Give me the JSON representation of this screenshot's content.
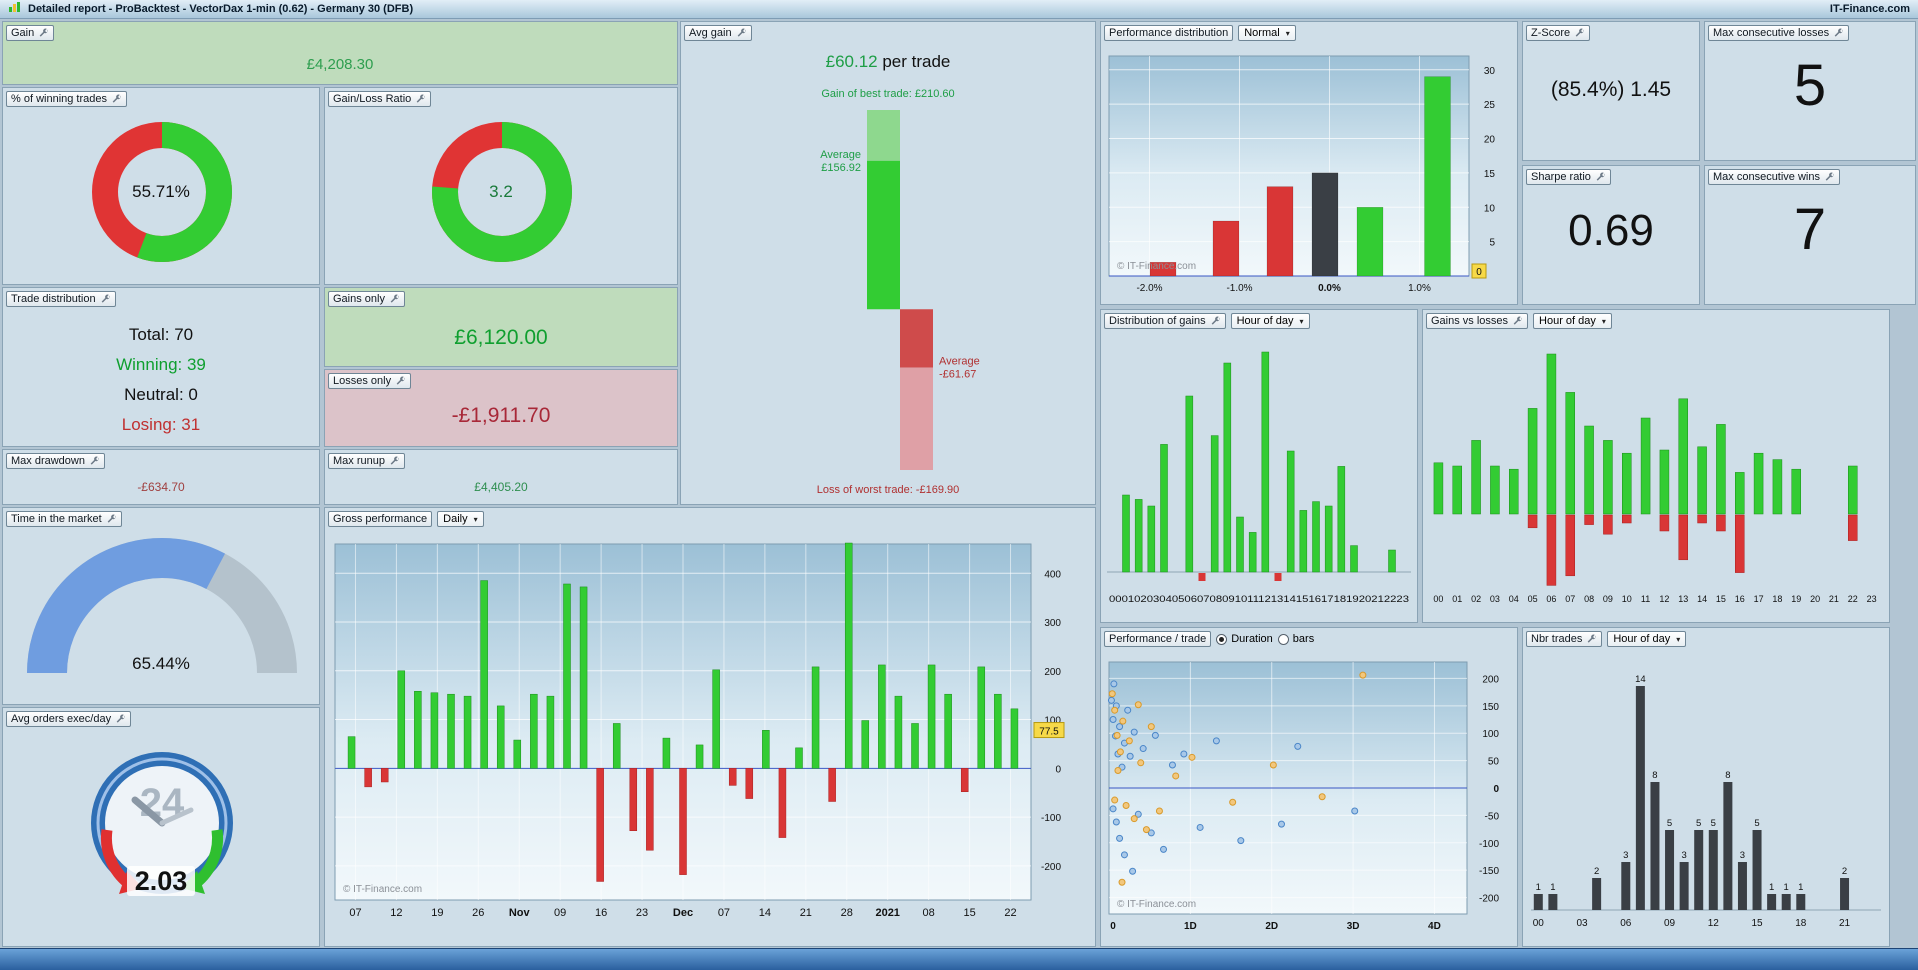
{
  "titlebar": {
    "title": "Detailed report - ProBacktest - VectorDax 1-min (0.62) - Germany 30 (DFB)",
    "brand": "IT-Finance.com"
  },
  "colors": {
    "bar_green": "#33cc33",
    "bar_red": "#d93636",
    "bar_dark": "#3a3f45",
    "gauge_blue": "#6f9de0",
    "gauge_rest": "#b4c2cc",
    "marker_yellow": "#f7d948",
    "zero_line_blue": "#3a57c4"
  },
  "gain": {
    "label": "Gain",
    "value": "£4,208.30"
  },
  "pct_winning": {
    "label": "% of winning trades",
    "display": "55.71%",
    "percent": 55.71
  },
  "gain_loss_ratio": {
    "label": "Gain/Loss Ratio",
    "display": "3.2",
    "green_percent": 76.2
  },
  "trade_distribution": {
    "label": "Trade distribution",
    "total": "Total: 70",
    "winning": "Winning: 39",
    "neutral": "Neutral: 0",
    "losing": "Losing: 31"
  },
  "gains_only": {
    "label": "Gains only",
    "value": "£6,120.00"
  },
  "losses_only": {
    "label": "Losses only",
    "value": "-£1,911.70"
  },
  "max_drawdown": {
    "label": "Max drawdown",
    "value": "-£634.70"
  },
  "max_runup": {
    "label": "Max runup",
    "value": "£4,405.20"
  },
  "time_in_market": {
    "label": "Time in the market",
    "display": "65.44%",
    "percent": 65.44
  },
  "avg_orders": {
    "label": "Avg orders exec/day",
    "value": "2.03",
    "clock_label": "24"
  },
  "avg_gain": {
    "label": "Avg gain",
    "value": "£60.12",
    "suffix": " per trade",
    "best_label": "Gain of best trade: £210.60",
    "worst_label": "Loss of worst trade: -£169.90",
    "avg_gain_line1": "Average",
    "avg_gain_line2": "£156.92",
    "avg_loss_line1": "Average",
    "avg_loss_line2": "-£61.67",
    "values": {
      "best": 210.6,
      "avg_gain": 156.92,
      "avg_loss": -61.67,
      "worst": -169.9
    }
  },
  "z_score": {
    "label": "Z-Score",
    "value": "(85.4%) 1.45"
  },
  "sharpe_ratio": {
    "label": "Sharpe ratio",
    "value": "0.69"
  },
  "max_consecutive_losses": {
    "label": "Max consecutive losses",
    "value": "5"
  },
  "max_consecutive_wins": {
    "label": "Max consecutive wins",
    "value": "7"
  },
  "chart_data": [
    {
      "id": "gross_performance",
      "type": "bar",
      "label": "Gross performance",
      "period_selector": "Daily",
      "watermark": "© IT-Finance.com",
      "last_value": "77.5",
      "ylim": [
        -270,
        460
      ],
      "y_ticks": [
        400,
        300,
        200,
        100,
        0,
        -100,
        -200
      ],
      "x_labels": [
        "07",
        "12",
        "19",
        "26",
        "Nov",
        "09",
        "16",
        "23",
        "Dec",
        "07",
        "14",
        "21",
        "28",
        "2021",
        "08",
        "15",
        "22"
      ],
      "bold_x_labels": [
        "Nov",
        "Dec",
        "2021"
      ],
      "values": [
        65,
        -38,
        -28,
        200,
        158,
        155,
        152,
        148,
        385,
        128,
        58,
        152,
        148,
        378,
        372,
        -232,
        92,
        -128,
        -168,
        62,
        -218,
        48,
        202,
        -35,
        -62,
        78,
        -142,
        42,
        208,
        -68,
        462,
        98,
        212,
        148,
        92,
        212,
        152,
        -48,
        208,
        152,
        122
      ]
    },
    {
      "id": "performance_distribution",
      "type": "histogram",
      "label": "Performance distribution",
      "mode_selector": "Normal",
      "watermark": "© IT-Finance.com",
      "marker": "0",
      "ylim": [
        0,
        32
      ],
      "xlim": [
        -2.45,
        1.55
      ],
      "y_ticks": [
        30,
        25,
        20,
        15,
        10,
        5
      ],
      "x_ticks": [
        {
          "v": -2.0,
          "label": "-2.0%",
          "bold": false
        },
        {
          "v": -1.0,
          "label": "-1.0%",
          "bold": false
        },
        {
          "v": 0.0,
          "label": "0.0%",
          "bold": true
        },
        {
          "v": 1.0,
          "label": "1.0%",
          "bold": false
        }
      ],
      "bars": [
        {
          "x": -1.85,
          "value": 2,
          "color": "red"
        },
        {
          "x": -1.15,
          "value": 8,
          "color": "red"
        },
        {
          "x": -0.55,
          "value": 13,
          "color": "red"
        },
        {
          "x": -0.05,
          "value": 15,
          "color": "dark"
        },
        {
          "x": 0.45,
          "value": 10,
          "color": "green"
        },
        {
          "x": 1.2,
          "value": 29,
          "color": "green"
        }
      ]
    },
    {
      "id": "distribution_of_gains",
      "type": "bar",
      "label": "Distribution of gains",
      "period_selector": "Hour of day",
      "x_axis_string": "000102030405060708091011121314151617181920212223",
      "values": [
        0,
        35,
        33,
        30,
        58,
        0,
        80,
        0,
        62,
        95,
        25,
        18,
        100,
        0,
        55,
        28,
        32,
        30,
        48,
        12,
        0,
        0,
        10,
        0
      ],
      "negatives": [
        0,
        0,
        0,
        0,
        0,
        0,
        0,
        -4,
        0,
        0,
        0,
        0,
        0,
        -4,
        0,
        0,
        0,
        0,
        0,
        0,
        0,
        0,
        0,
        0
      ]
    },
    {
      "id": "gains_vs_losses",
      "type": "bar",
      "label": "Gains vs losses",
      "period_selector": "Hour of day",
      "hours": [
        "00",
        "01",
        "02",
        "03",
        "04",
        "05",
        "06",
        "07",
        "08",
        "09",
        "10",
        "11",
        "12",
        "13",
        "14",
        "15",
        "16",
        "17",
        "18",
        "19",
        "20",
        "21",
        "22",
        "23"
      ],
      "gains": [
        32,
        30,
        46,
        30,
        28,
        66,
        100,
        76,
        55,
        46,
        38,
        60,
        40,
        72,
        42,
        56,
        26,
        38,
        34,
        28,
        0,
        0,
        30,
        0
      ],
      "losses": [
        0,
        0,
        0,
        0,
        0,
        -8,
        -44,
        -38,
        -6,
        -12,
        -5,
        0,
        -10,
        -28,
        -5,
        -10,
        -36,
        0,
        0,
        0,
        0,
        0,
        -16,
        0
      ]
    },
    {
      "id": "performance_per_trade",
      "type": "scatter",
      "label": "Performance / trade",
      "radio_options": [
        {
          "label": "Duration",
          "selected": true
        },
        {
          "label": "bars",
          "selected": false
        }
      ],
      "watermark": "© IT-Finance.com",
      "xlim": [
        0,
        4.4
      ],
      "ylim": [
        -230,
        230
      ],
      "x_ticks": [
        {
          "v": 0,
          "label": "0"
        },
        {
          "v": 1,
          "label": "1D"
        },
        {
          "v": 2,
          "label": "2D"
        },
        {
          "v": 3,
          "label": "3D"
        },
        {
          "v": 4,
          "label": "4D"
        }
      ],
      "y_ticks": [
        200,
        150,
        100,
        50,
        0,
        -50,
        -100,
        -150,
        -200
      ],
      "series": [
        {
          "name": "duration-blue",
          "points": [
            [
              0.03,
              160
            ],
            [
              0.05,
              125
            ],
            [
              0.06,
              190
            ],
            [
              0.08,
              95
            ],
            [
              0.09,
              150
            ],
            [
              0.11,
              62
            ],
            [
              0.13,
              112
            ],
            [
              0.16,
              38
            ],
            [
              0.19,
              82
            ],
            [
              0.23,
              142
            ],
            [
              0.05,
              -38
            ],
            [
              0.09,
              -62
            ],
            [
              0.13,
              -92
            ],
            [
              0.19,
              -122
            ],
            [
              0.26,
              58
            ],
            [
              0.31,
              102
            ],
            [
              0.36,
              -48
            ],
            [
              0.42,
              72
            ],
            [
              0.52,
              -82
            ],
            [
              0.57,
              96
            ],
            [
              0.67,
              -112
            ],
            [
              0.78,
              42
            ],
            [
              0.92,
              62
            ],
            [
              1.12,
              -72
            ],
            [
              1.32,
              86
            ],
            [
              1.62,
              -96
            ],
            [
              2.12,
              -66
            ],
            [
              2.32,
              76
            ],
            [
              3.02,
              -42
            ],
            [
              0.29,
              -152
            ]
          ]
        },
        {
          "name": "duration-orange",
          "points": [
            [
              0.04,
              172
            ],
            [
              0.07,
              142
            ],
            [
              0.1,
              96
            ],
            [
              0.14,
              66
            ],
            [
              0.17,
              122
            ],
            [
              0.21,
              -32
            ],
            [
              0.25,
              86
            ],
            [
              0.31,
              -56
            ],
            [
              0.39,
              46
            ],
            [
              0.46,
              -76
            ],
            [
              0.07,
              -22
            ],
            [
              0.11,
              32
            ],
            [
              0.52,
              112
            ],
            [
              0.62,
              -42
            ],
            [
              0.82,
              22
            ],
            [
              1.02,
              56
            ],
            [
              1.52,
              -26
            ],
            [
              2.02,
              42
            ],
            [
              2.62,
              -16
            ],
            [
              3.12,
              206
            ],
            [
              0.16,
              -172
            ],
            [
              0.36,
              152
            ]
          ]
        }
      ]
    },
    {
      "id": "nbr_trades",
      "type": "bar",
      "label": "Nbr trades",
      "period_selector": "Hour of day",
      "x_labels": [
        "00",
        "03",
        "06",
        "09",
        "12",
        "15",
        "18",
        "21"
      ],
      "bars": [
        {
          "hour": 0,
          "count": 1
        },
        {
          "hour": 1,
          "count": 1
        },
        {
          "hour": 4,
          "count": 2
        },
        {
          "hour": 6,
          "count": 3
        },
        {
          "hour": 7,
          "count": 14
        },
        {
          "hour": 8,
          "count": 8
        },
        {
          "hour": 9,
          "count": 5
        },
        {
          "hour": 10,
          "count": 3
        },
        {
          "hour": 11,
          "count": 5
        },
        {
          "hour": 12,
          "count": 5
        },
        {
          "hour": 13,
          "count": 8
        },
        {
          "hour": 14,
          "count": 3
        },
        {
          "hour": 15,
          "count": 5
        },
        {
          "hour": 16,
          "count": 1
        },
        {
          "hour": 17,
          "count": 1
        },
        {
          "hour": 18,
          "count": 1
        },
        {
          "hour": 21,
          "count": 2
        }
      ]
    }
  ]
}
